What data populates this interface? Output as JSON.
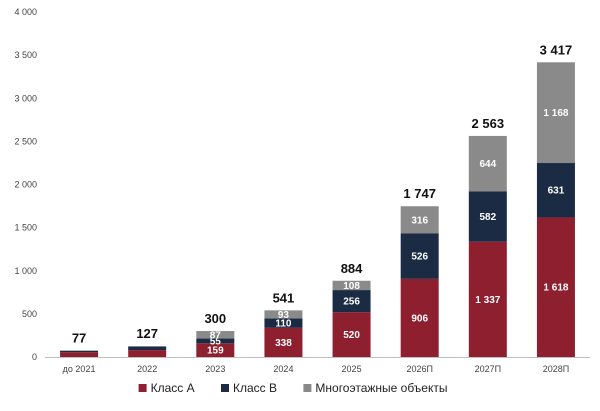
{
  "chart_data": {
    "type": "bar",
    "stacked": true,
    "title": "",
    "xlabel": "",
    "ylabel": "",
    "ylim": [
      0,
      4000
    ],
    "yticks": [
      0,
      500,
      1000,
      1500,
      2000,
      2500,
      3000,
      3500,
      4000
    ],
    "ytick_labels": [
      "0",
      "500",
      "1 000",
      "1 500",
      "2 000",
      "2 500",
      "3 000",
      "3 500",
      "4 000"
    ],
    "grid": false,
    "legend_position": "bottom",
    "categories": [
      "до 2021",
      "2022",
      "2023",
      "2024",
      "2025",
      "2026П",
      "2027П",
      "2028П"
    ],
    "series": [
      {
        "name": "Класс А",
        "color": "#8e1f2f",
        "values": [
          55,
          80,
          159,
          338,
          520,
          906,
          1337,
          1618
        ],
        "labels": [
          "",
          "",
          "159",
          "338",
          "520",
          "906",
          "1 337",
          "1 618"
        ]
      },
      {
        "name": "Класс В",
        "color": "#1b2b44",
        "values": [
          15,
          40,
          55,
          110,
          256,
          526,
          582,
          631
        ],
        "labels": [
          "",
          "",
          "55",
          "110",
          "256",
          "526",
          "582",
          "631"
        ]
      },
      {
        "name": "Многоэтажные объекты",
        "color": "#8a8a8a",
        "values": [
          7,
          7,
          87,
          93,
          108,
          316,
          644,
          1168
        ],
        "labels": [
          "",
          "",
          "87",
          "93",
          "108",
          "316",
          "644",
          "1 168"
        ]
      }
    ],
    "totals": [
      77,
      127,
      300,
      541,
      884,
      1747,
      2563,
      3417
    ],
    "total_labels": [
      "77",
      "127",
      "300",
      "541",
      "884",
      "1 747",
      "2 563",
      "3 417"
    ]
  }
}
